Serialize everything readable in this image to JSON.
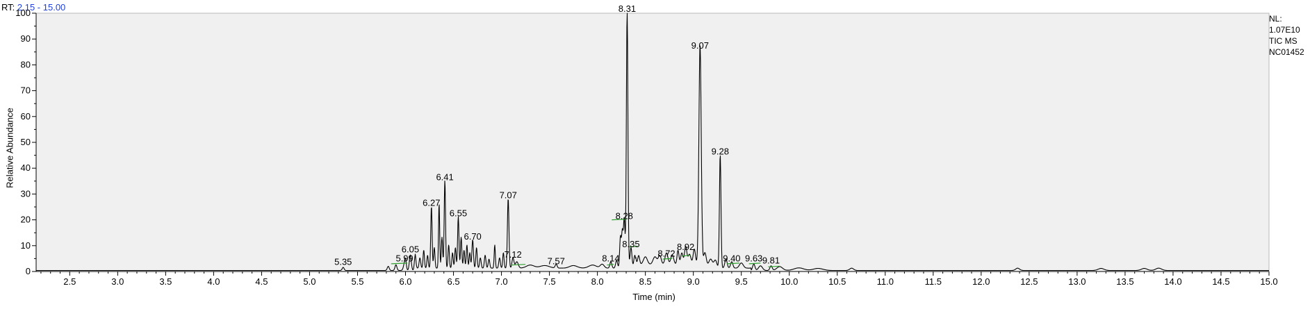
{
  "header": {
    "rt_label": "RT:",
    "rt_range": "2.15 - 15.00"
  },
  "info": {
    "nl_label": "NL:",
    "nl_value": "1.07E10",
    "scan_type": "TIC  MS",
    "sample_name": "NC01452"
  },
  "colors": {
    "trace": "#000000",
    "plot_background": "#f0f0f0",
    "rt_value": "#1f3fd6",
    "baseline_marker": "#2ca02c"
  },
  "chart_data": {
    "type": "line",
    "title": "",
    "xlabel": "Time (min)",
    "ylabel": "Relative Abundance",
    "xlim": [
      2.15,
      15.0
    ],
    "ylim": [
      0,
      100
    ],
    "x_ticks": [
      "2.5",
      "3.0",
      "3.5",
      "4.0",
      "4.5",
      "5.0",
      "5.5",
      "6.0",
      "6.5",
      "7.0",
      "7.5",
      "8.0",
      "8.5",
      "9.0",
      "9.5",
      "10.0",
      "10.5",
      "11.0",
      "11.5",
      "12.0",
      "12.5",
      "13.0",
      "13.5",
      "14.0",
      "14.5",
      "15.0"
    ],
    "y_ticks": [
      "0",
      "10",
      "20",
      "30",
      "40",
      "50",
      "60",
      "70",
      "80",
      "90",
      "100"
    ],
    "grid": false,
    "baseline": 0.4,
    "peaks": [
      {
        "label": "5.35",
        "rt": 5.35,
        "height": 1.2,
        "width": 0.01
      },
      {
        "label": "5.99",
        "rt": 5.99,
        "height": 2.5,
        "width": 0.012
      },
      {
        "label": "6.05",
        "rt": 6.05,
        "height": 6.0,
        "width": 0.01
      },
      {
        "label": "6.27",
        "rt": 6.27,
        "height": 24.0,
        "width": 0.007
      },
      {
        "label": "6.41",
        "rt": 6.41,
        "height": 34.0,
        "width": 0.007
      },
      {
        "label": "6.55",
        "rt": 6.55,
        "height": 20.0,
        "width": 0.007
      },
      {
        "label": "6.70",
        "rt": 6.7,
        "height": 11.0,
        "width": 0.008
      },
      {
        "label": "7.07",
        "rt": 7.07,
        "height": 27.0,
        "width": 0.008
      },
      {
        "label": "7.12",
        "rt": 7.12,
        "height": 4.0,
        "width": 0.01
      },
      {
        "label": "7.57",
        "rt": 7.57,
        "height": 1.5,
        "width": 0.01
      },
      {
        "label": "8.14",
        "rt": 8.14,
        "height": 2.5,
        "width": 0.01
      },
      {
        "label": "8.28",
        "rt": 8.28,
        "height": 19.0,
        "width": 0.008
      },
      {
        "label": "8.31",
        "rt": 8.31,
        "height": 100.0,
        "width": 0.008
      },
      {
        "label": "8.35",
        "rt": 8.35,
        "height": 8.0,
        "width": 0.01
      },
      {
        "label": "8.72",
        "rt": 8.72,
        "height": 4.5,
        "width": 0.015
      },
      {
        "label": "8.92",
        "rt": 8.92,
        "height": 7.0,
        "width": 0.012
      },
      {
        "label": "9.07",
        "rt": 9.07,
        "height": 85.0,
        "width": 0.012
      },
      {
        "label": "9.28",
        "rt": 9.28,
        "height": 44.0,
        "width": 0.008
      },
      {
        "label": "9.40",
        "rt": 9.4,
        "height": 2.5,
        "width": 0.012
      },
      {
        "label": "9.63",
        "rt": 9.63,
        "height": 2.5,
        "width": 0.012
      },
      {
        "label": "9.81",
        "rt": 9.81,
        "height": 1.8,
        "width": 0.012
      }
    ],
    "minor_peaks": [
      {
        "rt": 5.82,
        "height": 1.6,
        "width": 0.01
      },
      {
        "rt": 5.9,
        "height": 2.2,
        "width": 0.01
      },
      {
        "rt": 6.0,
        "height": 3.0,
        "width": 0.008
      },
      {
        "rt": 6.1,
        "height": 5.5,
        "width": 0.008
      },
      {
        "rt": 6.15,
        "height": 4.0,
        "width": 0.008
      },
      {
        "rt": 6.19,
        "height": 7.0,
        "width": 0.007
      },
      {
        "rt": 6.23,
        "height": 5.0,
        "width": 0.007
      },
      {
        "rt": 6.3,
        "height": 8.0,
        "width": 0.007
      },
      {
        "rt": 6.35,
        "height": 25.0,
        "width": 0.006
      },
      {
        "rt": 6.38,
        "height": 12.0,
        "width": 0.007
      },
      {
        "rt": 6.45,
        "height": 9.0,
        "width": 0.007
      },
      {
        "rt": 6.49,
        "height": 6.0,
        "width": 0.007
      },
      {
        "rt": 6.52,
        "height": 8.0,
        "width": 0.007
      },
      {
        "rt": 6.58,
        "height": 12.0,
        "width": 0.007
      },
      {
        "rt": 6.61,
        "height": 7.0,
        "width": 0.007
      },
      {
        "rt": 6.64,
        "height": 9.0,
        "width": 0.007
      },
      {
        "rt": 6.67,
        "height": 6.0,
        "width": 0.007
      },
      {
        "rt": 6.74,
        "height": 8.0,
        "width": 0.007
      },
      {
        "rt": 6.78,
        "height": 4.0,
        "width": 0.008
      },
      {
        "rt": 6.83,
        "height": 5.0,
        "width": 0.008
      },
      {
        "rt": 6.87,
        "height": 3.5,
        "width": 0.008
      },
      {
        "rt": 6.93,
        "height": 9.0,
        "width": 0.006
      },
      {
        "rt": 6.98,
        "height": 4.0,
        "width": 0.008
      },
      {
        "rt": 7.02,
        "height": 6.0,
        "width": 0.007
      },
      {
        "rt": 7.16,
        "height": 2.5,
        "width": 0.015
      },
      {
        "rt": 7.3,
        "height": 1.2,
        "width": 0.04
      },
      {
        "rt": 7.45,
        "height": 1.0,
        "width": 0.05
      },
      {
        "rt": 7.75,
        "height": 1.0,
        "width": 0.04
      },
      {
        "rt": 7.95,
        "height": 1.2,
        "width": 0.04
      },
      {
        "rt": 8.05,
        "height": 1.5,
        "width": 0.02
      },
      {
        "rt": 8.2,
        "height": 3.0,
        "width": 0.01
      },
      {
        "rt": 8.24,
        "height": 12.0,
        "width": 0.008
      },
      {
        "rt": 8.26,
        "height": 14.0,
        "width": 0.008
      },
      {
        "rt": 8.39,
        "height": 5.0,
        "width": 0.01
      },
      {
        "rt": 8.43,
        "height": 3.5,
        "width": 0.01
      },
      {
        "rt": 8.5,
        "height": 3.0,
        "width": 0.02
      },
      {
        "rt": 8.6,
        "height": 3.0,
        "width": 0.02
      },
      {
        "rt": 8.65,
        "height": 3.5,
        "width": 0.015
      },
      {
        "rt": 8.78,
        "height": 3.8,
        "width": 0.015
      },
      {
        "rt": 8.84,
        "height": 5.5,
        "width": 0.01
      },
      {
        "rt": 8.88,
        "height": 4.5,
        "width": 0.012
      },
      {
        "rt": 8.96,
        "height": 4.0,
        "width": 0.015
      },
      {
        "rt": 9.01,
        "height": 6.0,
        "width": 0.012
      },
      {
        "rt": 9.12,
        "height": 6.0,
        "width": 0.015
      },
      {
        "rt": 9.18,
        "height": 3.5,
        "width": 0.02
      },
      {
        "rt": 9.23,
        "height": 3.0,
        "width": 0.015
      },
      {
        "rt": 9.34,
        "height": 3.5,
        "width": 0.012
      },
      {
        "rt": 9.5,
        "height": 2.0,
        "width": 0.02
      },
      {
        "rt": 9.7,
        "height": 1.8,
        "width": 0.02
      },
      {
        "rt": 9.9,
        "height": 1.5,
        "width": 0.03
      },
      {
        "rt": 10.1,
        "height": 1.0,
        "width": 0.05
      },
      {
        "rt": 10.3,
        "height": 0.8,
        "width": 0.05
      },
      {
        "rt": 10.65,
        "height": 0.9,
        "width": 0.02
      },
      {
        "rt": 12.38,
        "height": 0.9,
        "width": 0.02
      },
      {
        "rt": 13.25,
        "height": 0.8,
        "width": 0.03
      },
      {
        "rt": 13.7,
        "height": 0.8,
        "width": 0.03
      },
      {
        "rt": 13.85,
        "height": 0.9,
        "width": 0.03
      }
    ],
    "baseline_markers": [
      {
        "x1": 5.85,
        "x2": 6.02,
        "y": 3.0
      },
      {
        "x1": 7.1,
        "x2": 7.25,
        "y": 2.5
      },
      {
        "x1": 8.1,
        "x2": 8.17,
        "y": 2.5
      },
      {
        "x1": 8.15,
        "x2": 8.3,
        "y": 20.0
      },
      {
        "x1": 8.33,
        "x2": 8.42,
        "y": 9.5
      },
      {
        "x1": 8.68,
        "x2": 8.78,
        "y": 4.8
      },
      {
        "x1": 8.88,
        "x2": 8.97,
        "y": 6.0
      },
      {
        "x1": 9.35,
        "x2": 9.48,
        "y": 3.0
      },
      {
        "x1": 9.58,
        "x2": 9.7,
        "y": 3.0
      },
      {
        "x1": 9.78,
        "x2": 9.9,
        "y": 1.8
      }
    ]
  }
}
